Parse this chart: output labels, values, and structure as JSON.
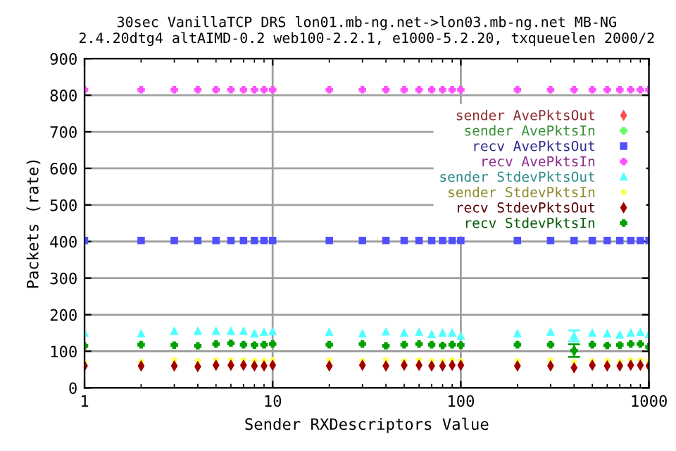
{
  "chart_data": {
    "type": "scatter",
    "title": "30sec VanillaTCP DRS lon01.mb-ng.net->lon03.mb-ng.net MB-NG\n2.4.20dtg4 altAIMD-0.2 web100-2.2.1, e1000-5.2.20, txqueuelen 2000/2",
    "xlabel": "Sender RXDescriptors Value",
    "ylabel": "Packets (rate)",
    "x": [
      1,
      2,
      3,
      4,
      5,
      6,
      7,
      8,
      9,
      10,
      20,
      30,
      40,
      50,
      60,
      70,
      80,
      90,
      100,
      200,
      300,
      400,
      500,
      600,
      700,
      800,
      900,
      1000
    ],
    "series": [
      {
        "name": "sender AvePktsOut",
        "color": "#ff5050",
        "marker": "diamond",
        "values": [
          null,
          null,
          null,
          null,
          null,
          null,
          null,
          null,
          null,
          null,
          null,
          null,
          null,
          null,
          null,
          null,
          null,
          null,
          null,
          null,
          null,
          null,
          null,
          null,
          null,
          null,
          null,
          null
        ]
      },
      {
        "name": "sender AvePktsIn",
        "color": "#60ff60",
        "marker": "cross",
        "values": [
          null,
          null,
          null,
          null,
          null,
          null,
          null,
          null,
          null,
          null,
          null,
          null,
          null,
          null,
          null,
          null,
          null,
          null,
          null,
          null,
          null,
          null,
          null,
          null,
          null,
          null,
          null,
          null
        ]
      },
      {
        "name": "recv AvePktsOut",
        "color": "#5050ff",
        "marker": "square",
        "values": [
          403,
          403,
          403,
          403,
          403,
          403,
          403,
          403,
          403,
          403,
          403,
          403,
          403,
          403,
          403,
          403,
          403,
          403,
          403,
          403,
          403,
          403,
          403,
          403,
          403,
          403,
          403,
          403
        ]
      },
      {
        "name": "recv AvePktsIn",
        "color": "#ff50ff",
        "marker": "cross",
        "values": [
          815,
          815,
          815,
          815,
          815,
          815,
          815,
          815,
          815,
          815,
          815,
          815,
          815,
          815,
          815,
          815,
          815,
          815,
          815,
          815,
          815,
          815,
          815,
          815,
          815,
          815,
          815,
          815
        ]
      },
      {
        "name": "sender StdevPktsOut",
        "color": "#50ffff",
        "marker": "triangle",
        "values": [
          150,
          148,
          155,
          155,
          155,
          155,
          155,
          148,
          152,
          154,
          152,
          148,
          153,
          150,
          152,
          146,
          150,
          150,
          142,
          148,
          152,
          142,
          150,
          148,
          145,
          150,
          152,
          146
        ],
        "errors": [
          null,
          null,
          null,
          null,
          null,
          null,
          null,
          null,
          null,
          null,
          null,
          null,
          null,
          null,
          null,
          null,
          null,
          null,
          null,
          null,
          null,
          15,
          null,
          null,
          null,
          null,
          null,
          null
        ]
      },
      {
        "name": "sender StdevPktsIn",
        "color": "#ffff50",
        "marker": "star",
        "values": [
          72,
          72,
          76,
          74,
          76,
          76,
          76,
          74,
          74,
          76,
          76,
          74,
          76,
          74,
          76,
          74,
          74,
          76,
          74,
          74,
          76,
          70,
          74,
          74,
          72,
          76,
          76,
          74
        ]
      },
      {
        "name": "recv StdevPktsOut",
        "color": "#a00000",
        "marker": "diamond",
        "values": [
          60,
          60,
          60,
          58,
          62,
          62,
          62,
          60,
          60,
          62,
          60,
          62,
          60,
          62,
          62,
          60,
          60,
          62,
          62,
          60,
          60,
          55,
          62,
          60,
          60,
          62,
          62,
          60
        ]
      },
      {
        "name": "recv StdevPktsIn",
        "color": "#00a000",
        "marker": "cross",
        "values": [
          115,
          118,
          117,
          115,
          120,
          122,
          118,
          117,
          118,
          120,
          118,
          120,
          115,
          118,
          120,
          118,
          116,
          118,
          117,
          118,
          118,
          102,
          118,
          116,
          117,
          120,
          120,
          112
        ],
        "errors": [
          null,
          null,
          null,
          null,
          null,
          null,
          null,
          null,
          null,
          null,
          null,
          null,
          null,
          null,
          null,
          null,
          null,
          null,
          null,
          null,
          null,
          17,
          null,
          null,
          null,
          null,
          null,
          null
        ]
      }
    ],
    "log": "x",
    "xlim": [
      1,
      1000
    ],
    "xticks": [
      1,
      10,
      100,
      1000
    ],
    "ylim": [
      0,
      900
    ],
    "yticks": [
      0,
      100,
      200,
      300,
      400,
      500,
      600,
      700,
      800,
      900
    ],
    "grid": true,
    "legend": "top right"
  }
}
